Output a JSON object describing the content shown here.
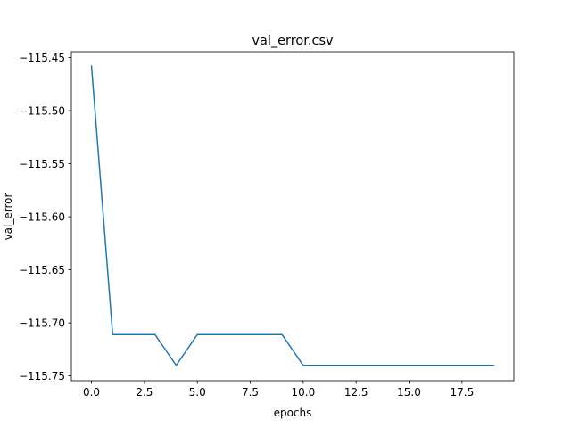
{
  "chart_data": {
    "type": "line",
    "title": "val_error.csv",
    "xlabel": "epochs",
    "ylabel": "val_error",
    "xlim": [
      -0.95,
      19.95
    ],
    "ylim": [
      -115.7545,
      -115.4445
    ],
    "xticks": [
      0.0,
      2.5,
      5.0,
      7.5,
      10.0,
      12.5,
      15.0,
      17.5
    ],
    "xtick_labels": [
      "0.0",
      "2.5",
      "5.0",
      "7.5",
      "10.0",
      "12.5",
      "15.0",
      "17.5"
    ],
    "yticks": [
      -115.45,
      -115.5,
      -115.55,
      -115.6,
      -115.65,
      -115.7,
      -115.75
    ],
    "ytick_labels": [
      "−115.45",
      "−115.50",
      "−115.55",
      "−115.60",
      "−115.65",
      "−115.70",
      "−115.75"
    ],
    "grid": false,
    "series": [
      {
        "color": "#1f77b4",
        "x": [
          0,
          1,
          2,
          3,
          4,
          5,
          6,
          7,
          8,
          9,
          10,
          11,
          12,
          13,
          14,
          15,
          16,
          17,
          18,
          19
        ],
        "y": [
          -115.458,
          -115.711,
          -115.711,
          -115.711,
          -115.74,
          -115.711,
          -115.711,
          -115.711,
          -115.711,
          -115.711,
          -115.74,
          -115.74,
          -115.74,
          -115.74,
          -115.74,
          -115.74,
          -115.74,
          -115.74,
          -115.74,
          -115.74
        ]
      }
    ]
  }
}
